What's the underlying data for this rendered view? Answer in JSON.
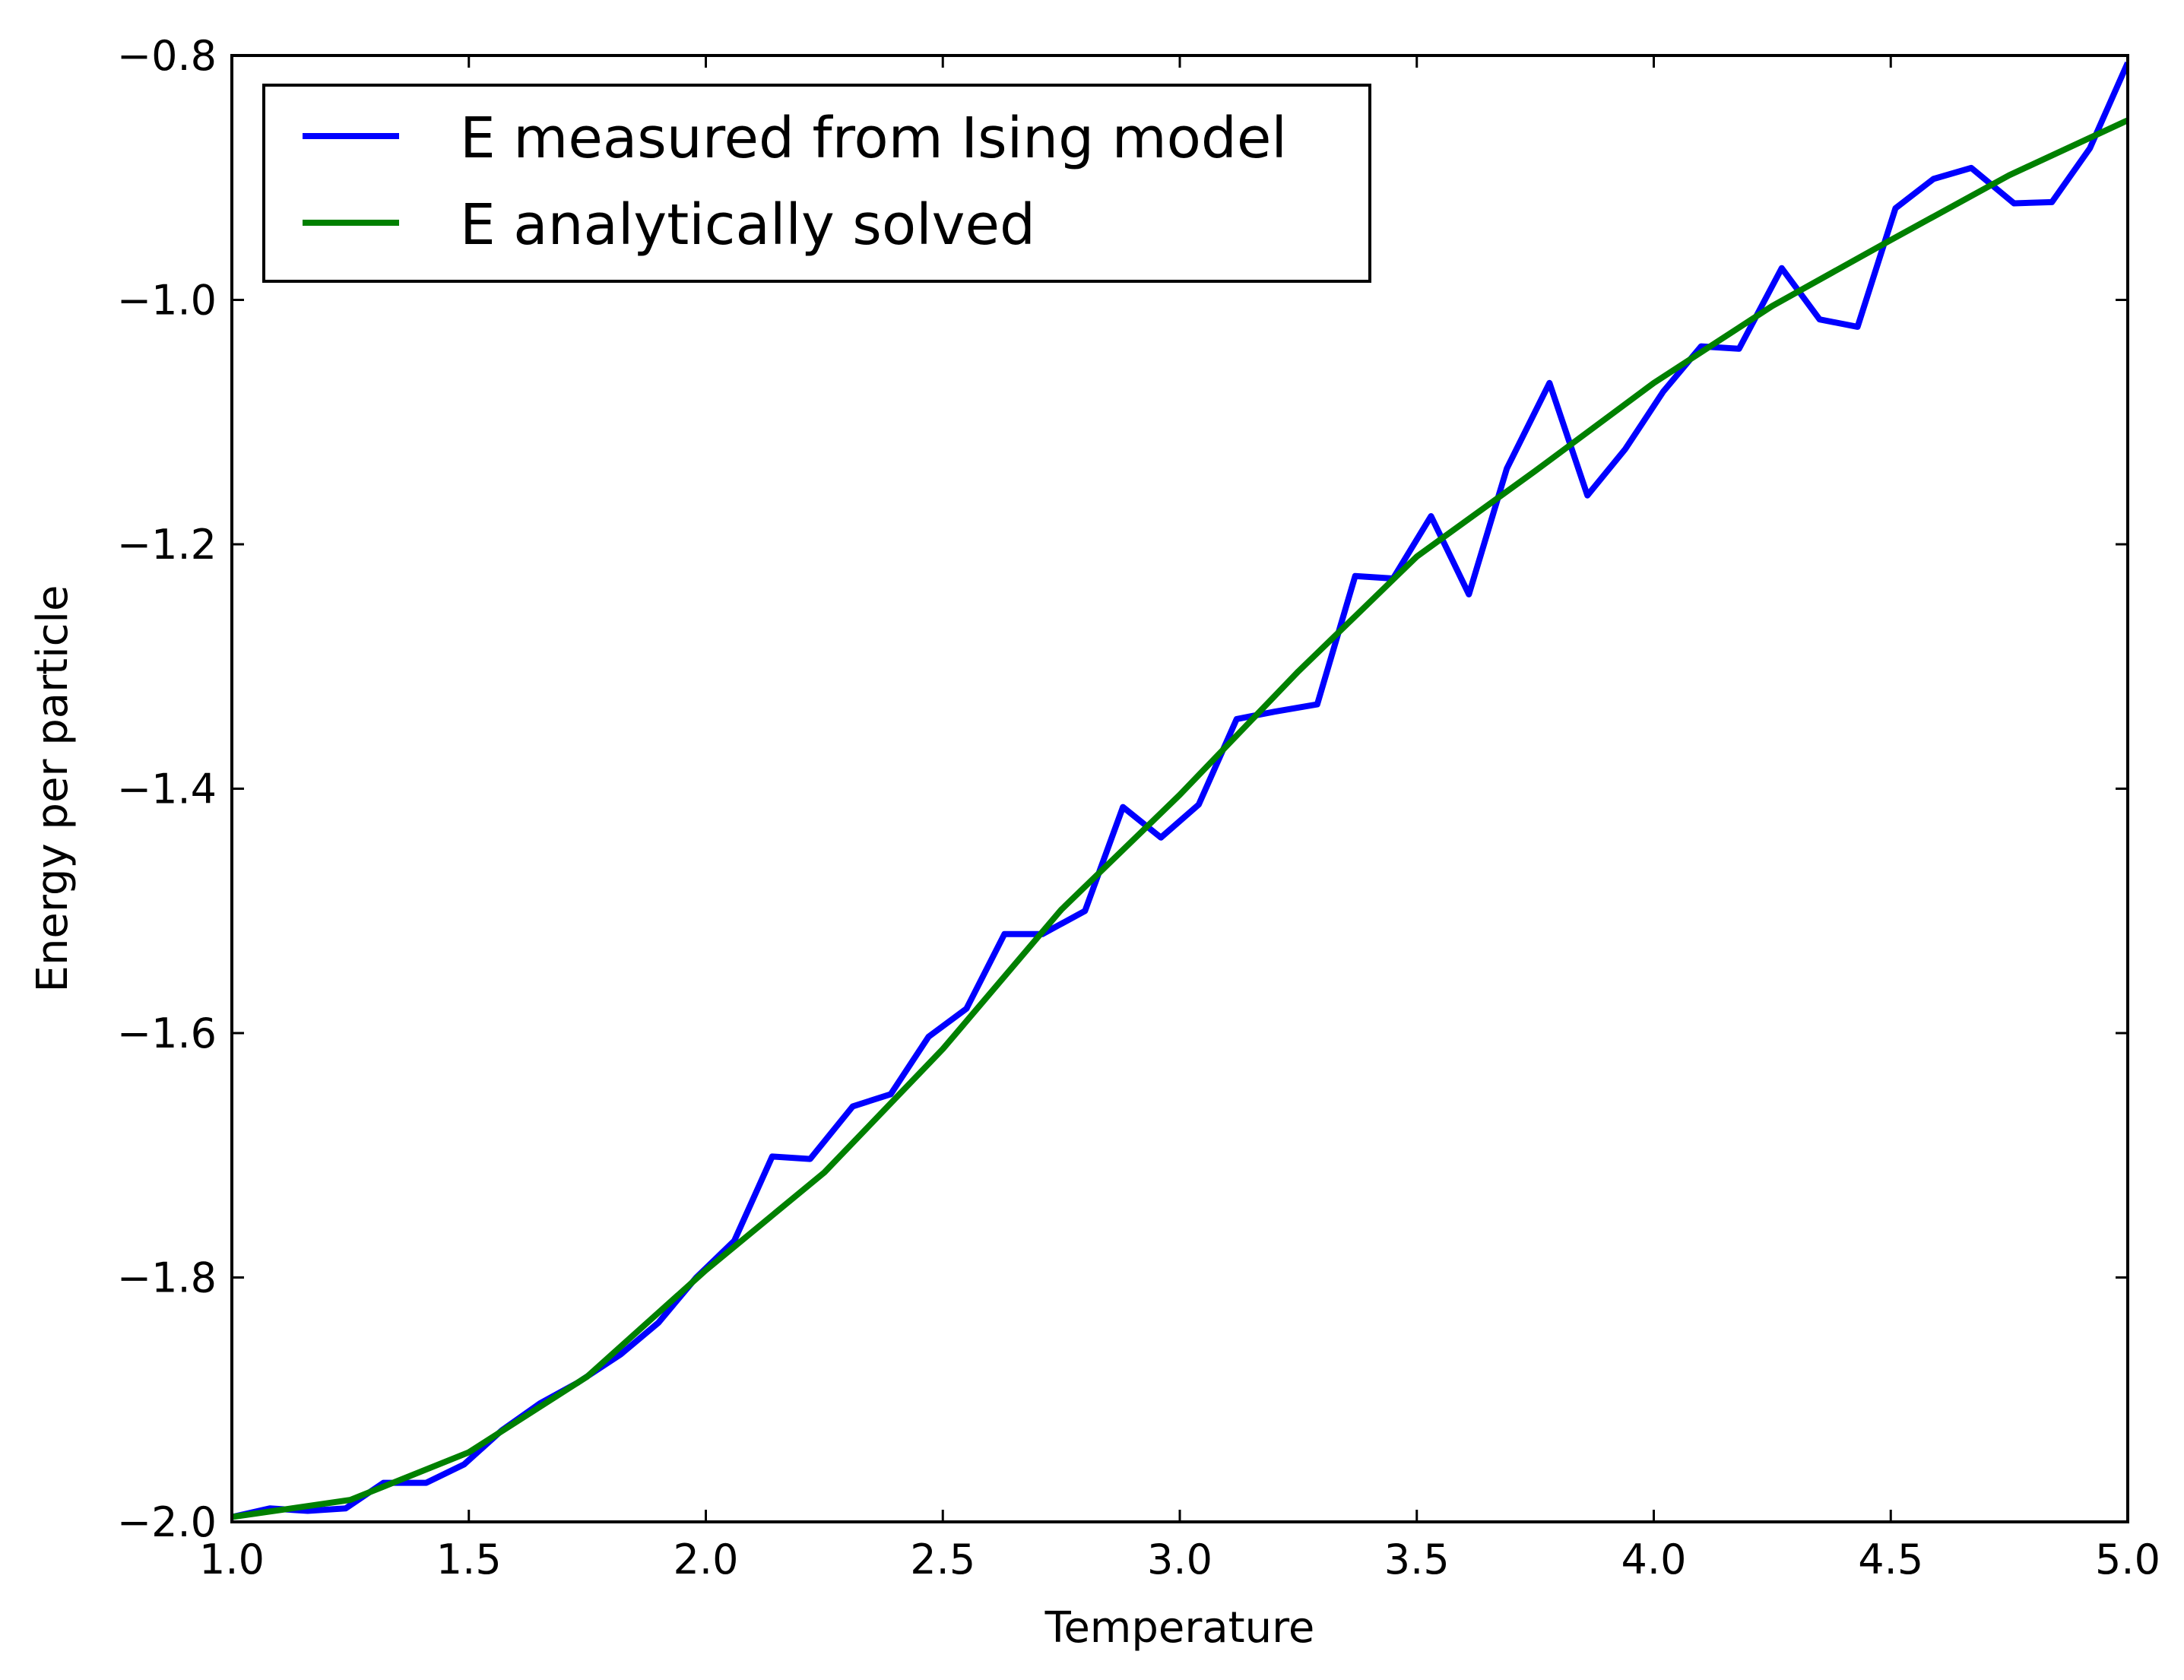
{
  "chart_data": {
    "type": "line",
    "title": "",
    "xlabel": "Temperature",
    "ylabel": "Energy per particle",
    "xlim": [
      1.0,
      5.0
    ],
    "ylim": [
      -2.0,
      -0.8
    ],
    "xticks": [
      1.0,
      1.5,
      2.0,
      2.5,
      3.0,
      3.5,
      4.0,
      4.5,
      5.0
    ],
    "yticks": [
      -2.0,
      -1.8,
      -1.6,
      -1.4,
      -1.2,
      -1.0,
      -0.8
    ],
    "xtick_labels": [
      "1.0",
      "1.5",
      "2.0",
      "2.5",
      "3.0",
      "3.5",
      "4.0",
      "4.5",
      "5.0"
    ],
    "ytick_labels": [
      "−2.0",
      "−1.8",
      "−1.6",
      "−1.4",
      "−1.2",
      "−1.0",
      "−0.8"
    ],
    "grid": false,
    "legend": {
      "position": "top-left"
    },
    "series": [
      {
        "name": "E measured from Ising model",
        "color": "#0000ff",
        "x": [
          1.0,
          1.08,
          1.16,
          1.24,
          1.32,
          1.41,
          1.49,
          1.57,
          1.65,
          1.73,
          1.82,
          1.9,
          1.98,
          2.06,
          2.14,
          2.22,
          2.31,
          2.39,
          2.47,
          2.55,
          2.63,
          2.71,
          2.8,
          2.88,
          2.96,
          3.04,
          3.12,
          3.2,
          3.29,
          3.37,
          3.45,
          3.53,
          3.61,
          3.69,
          3.78,
          3.86,
          3.94,
          4.02,
          4.1,
          4.18,
          4.27,
          4.35,
          4.43,
          4.51,
          4.59,
          4.67,
          4.76,
          4.84,
          4.92,
          5.0
        ],
        "y": [
          -1.996,
          -1.989,
          -1.991,
          -1.989,
          -1.968,
          -1.968,
          -1.953,
          -1.925,
          -1.903,
          -1.886,
          -1.863,
          -1.837,
          -1.8,
          -1.77,
          -1.701,
          -1.703,
          -1.66,
          -1.65,
          -1.603,
          -1.58,
          -1.519,
          -1.519,
          -1.5,
          -1.415,
          -1.44,
          -1.413,
          -1.343,
          -1.337,
          -1.331,
          -1.226,
          -1.228,
          -1.177,
          -1.241,
          -1.138,
          -1.068,
          -1.16,
          -1.122,
          -1.075,
          -1.038,
          -1.04,
          -0.974,
          -1.016,
          -1.022,
          -0.925,
          -0.901,
          -0.892,
          -0.921,
          -0.92,
          -0.876,
          -0.806
        ]
      },
      {
        "name": "E analytically solved",
        "color": "#008000",
        "x": [
          1.0,
          1.25,
          1.5,
          1.75,
          2.0,
          2.25,
          2.5,
          2.75,
          3.0,
          3.25,
          3.5,
          3.75,
          4.0,
          4.25,
          4.5,
          4.75,
          5.0
        ],
        "y": [
          -1.996,
          -1.982,
          -1.943,
          -1.881,
          -1.794,
          -1.714,
          -1.613,
          -1.499,
          -1.405,
          -1.304,
          -1.21,
          -1.14,
          -1.068,
          -1.005,
          -0.951,
          -0.898,
          -0.853
        ]
      }
    ]
  }
}
